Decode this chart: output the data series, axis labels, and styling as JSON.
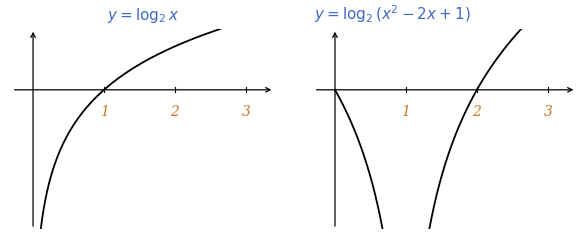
{
  "title1": "$y = \\log_2 x$",
  "title2": "$y = \\log_2(x^2 - 2x + 1)$",
  "title_color": "#4169c8",
  "curve_color": "#000000",
  "axis_color": "#000000",
  "tick_label_color": "#cc7722",
  "tick_label_fontsize": 10,
  "xlim": [
    -0.3,
    3.4
  ],
  "ylim": [
    -3.2,
    1.4
  ],
  "x_ticks": [
    1,
    2,
    3
  ],
  "figsize": [
    5.88,
    2.41
  ],
  "dpi": 100,
  "linewidth": 1.3
}
